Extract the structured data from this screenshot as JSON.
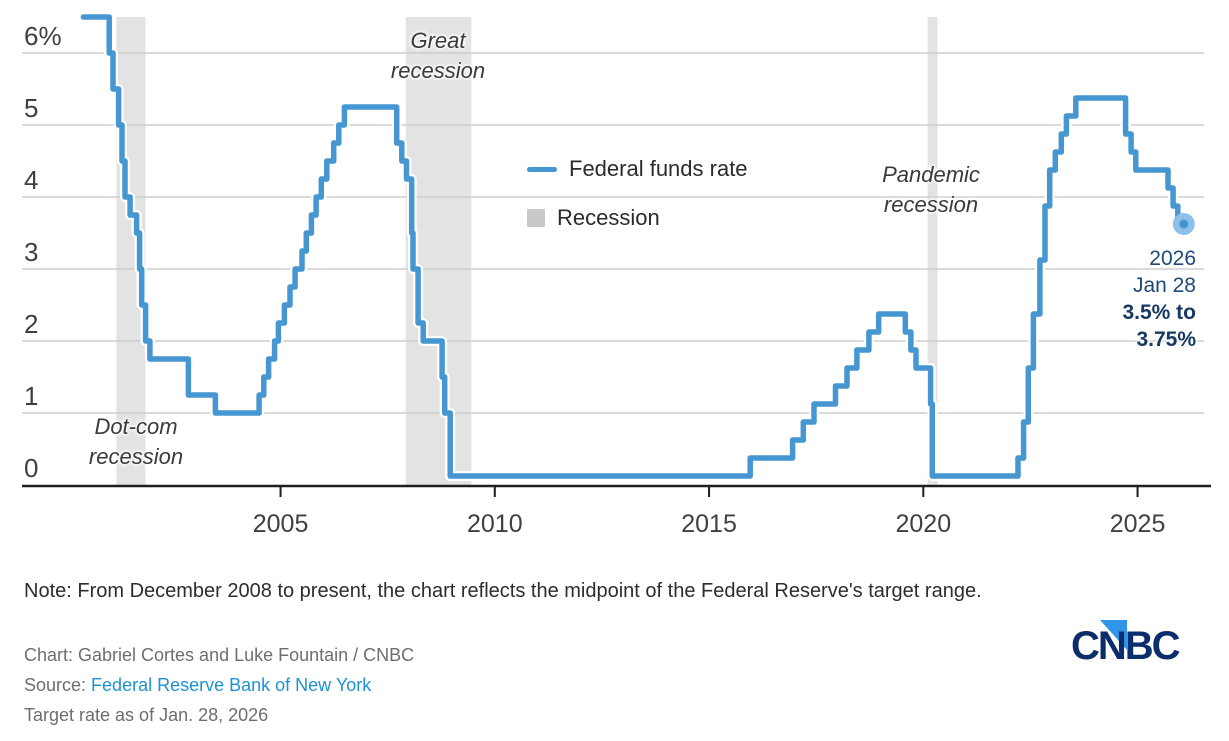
{
  "colors": {
    "line": "#4596d1",
    "endpoint_halo": "#8fc0ea",
    "recession_band": "#e3e3e3",
    "gridline": "#cdcdcd",
    "axis_line": "#1f1f1f",
    "axis_text": "#404040",
    "legend_box": "#c9c9c9",
    "annotation_text": "#3a3a3a",
    "endpoint_text": "#1e4a7a",
    "endpoint_text_bold": "#163a61",
    "source_link": "#1e92d4",
    "logo_navy": "#0c2d6b",
    "logo_blue": "#3095e8"
  },
  "chart_data": {
    "type": "line",
    "step": true,
    "unit": "%",
    "x_ticks": [
      2005,
      2010,
      2015,
      2020,
      2025
    ],
    "y_ticks": [
      0,
      1,
      2,
      3,
      4,
      5,
      6
    ],
    "y_tick_labels": [
      "0",
      "1",
      "2",
      "3",
      "4",
      "5",
      "6%"
    ],
    "ylim": [
      0,
      6.5
    ],
    "xlim": [
      2000.4,
      2026.35
    ],
    "grid": true,
    "legend": [
      {
        "label": "Federal funds rate",
        "type": "line"
      },
      {
        "label": "Recession",
        "type": "box"
      }
    ],
    "recessions": [
      {
        "name": "Dot-com recession",
        "start": 2001.17,
        "end": 2001.85
      },
      {
        "name": "Great recession",
        "start": 2007.92,
        "end": 2009.45
      },
      {
        "name": "Pandemic recession",
        "start": 2020.1,
        "end": 2020.33
      }
    ],
    "series": [
      {
        "name": "Federal funds rate",
        "points": [
          [
            2000.4,
            6.5
          ],
          [
            2001.0,
            6.0
          ],
          [
            2001.09,
            5.5
          ],
          [
            2001.22,
            5.0
          ],
          [
            2001.3,
            4.5
          ],
          [
            2001.37,
            4.0
          ],
          [
            2001.49,
            3.75
          ],
          [
            2001.64,
            3.5
          ],
          [
            2001.71,
            3.0
          ],
          [
            2001.76,
            2.5
          ],
          [
            2001.85,
            2.0
          ],
          [
            2001.95,
            1.75
          ],
          [
            2002.85,
            1.25
          ],
          [
            2003.48,
            1.0
          ],
          [
            2004.5,
            1.25
          ],
          [
            2004.61,
            1.5
          ],
          [
            2004.72,
            1.75
          ],
          [
            2004.86,
            2.0
          ],
          [
            2004.95,
            2.25
          ],
          [
            2005.09,
            2.5
          ],
          [
            2005.22,
            2.75
          ],
          [
            2005.34,
            3.0
          ],
          [
            2005.5,
            3.25
          ],
          [
            2005.6,
            3.5
          ],
          [
            2005.72,
            3.75
          ],
          [
            2005.83,
            4.0
          ],
          [
            2005.95,
            4.25
          ],
          [
            2006.08,
            4.5
          ],
          [
            2006.24,
            4.75
          ],
          [
            2006.36,
            5.0
          ],
          [
            2006.49,
            5.25
          ],
          [
            2007.71,
            4.75
          ],
          [
            2007.83,
            4.5
          ],
          [
            2007.94,
            4.25
          ],
          [
            2008.06,
            3.5
          ],
          [
            2008.09,
            3.0
          ],
          [
            2008.21,
            2.25
          ],
          [
            2008.33,
            2.0
          ],
          [
            2008.77,
            1.5
          ],
          [
            2008.83,
            1.0
          ],
          [
            2008.96,
            0.125
          ],
          [
            2015.96,
            0.375
          ],
          [
            2016.95,
            0.625
          ],
          [
            2017.2,
            0.875
          ],
          [
            2017.45,
            1.125
          ],
          [
            2017.95,
            1.375
          ],
          [
            2018.22,
            1.625
          ],
          [
            2018.45,
            1.875
          ],
          [
            2018.73,
            2.125
          ],
          [
            2018.96,
            2.375
          ],
          [
            2019.58,
            2.125
          ],
          [
            2019.71,
            1.875
          ],
          [
            2019.83,
            1.625
          ],
          [
            2020.17,
            1.125
          ],
          [
            2020.21,
            0.125
          ],
          [
            2022.21,
            0.375
          ],
          [
            2022.34,
            0.875
          ],
          [
            2022.45,
            1.625
          ],
          [
            2022.57,
            2.375
          ],
          [
            2022.72,
            3.125
          ],
          [
            2022.84,
            3.875
          ],
          [
            2022.95,
            4.375
          ],
          [
            2023.08,
            4.625
          ],
          [
            2023.22,
            4.875
          ],
          [
            2023.34,
            5.125
          ],
          [
            2023.56,
            5.375
          ],
          [
            2024.72,
            4.875
          ],
          [
            2024.85,
            4.625
          ],
          [
            2024.96,
            4.375
          ],
          [
            2025.71,
            4.125
          ],
          [
            2025.83,
            3.875
          ],
          [
            2025.94,
            3.625
          ],
          [
            2026.08,
            3.625
          ]
        ]
      }
    ],
    "endpoint_label": {
      "plain_lines": [
        "2026",
        "Jan 28"
      ],
      "bold_lines": [
        "3.5% to",
        "3.75%"
      ],
      "value": 3.625
    }
  },
  "annotations": {
    "great": [
      "Great",
      "recession"
    ],
    "dotcom": [
      "Dot-com",
      "recession"
    ],
    "pandemic": [
      "Pandemic",
      "recession"
    ]
  },
  "legend": {
    "fed_funds_label": "Federal funds rate",
    "recession_label": "Recession"
  },
  "footer": {
    "note": "Note: From December 2008 to present, the chart reflects the midpoint of the Federal Reserve's target range.",
    "credit_chart": "Chart: Gabriel Cortes and Luke Fountain / CNBC",
    "source_label": "Source: ",
    "source_link": "Federal Reserve Bank of New York",
    "target_note": "Target rate as of Jan. 28, 2026",
    "logo_text": "CNBC"
  }
}
